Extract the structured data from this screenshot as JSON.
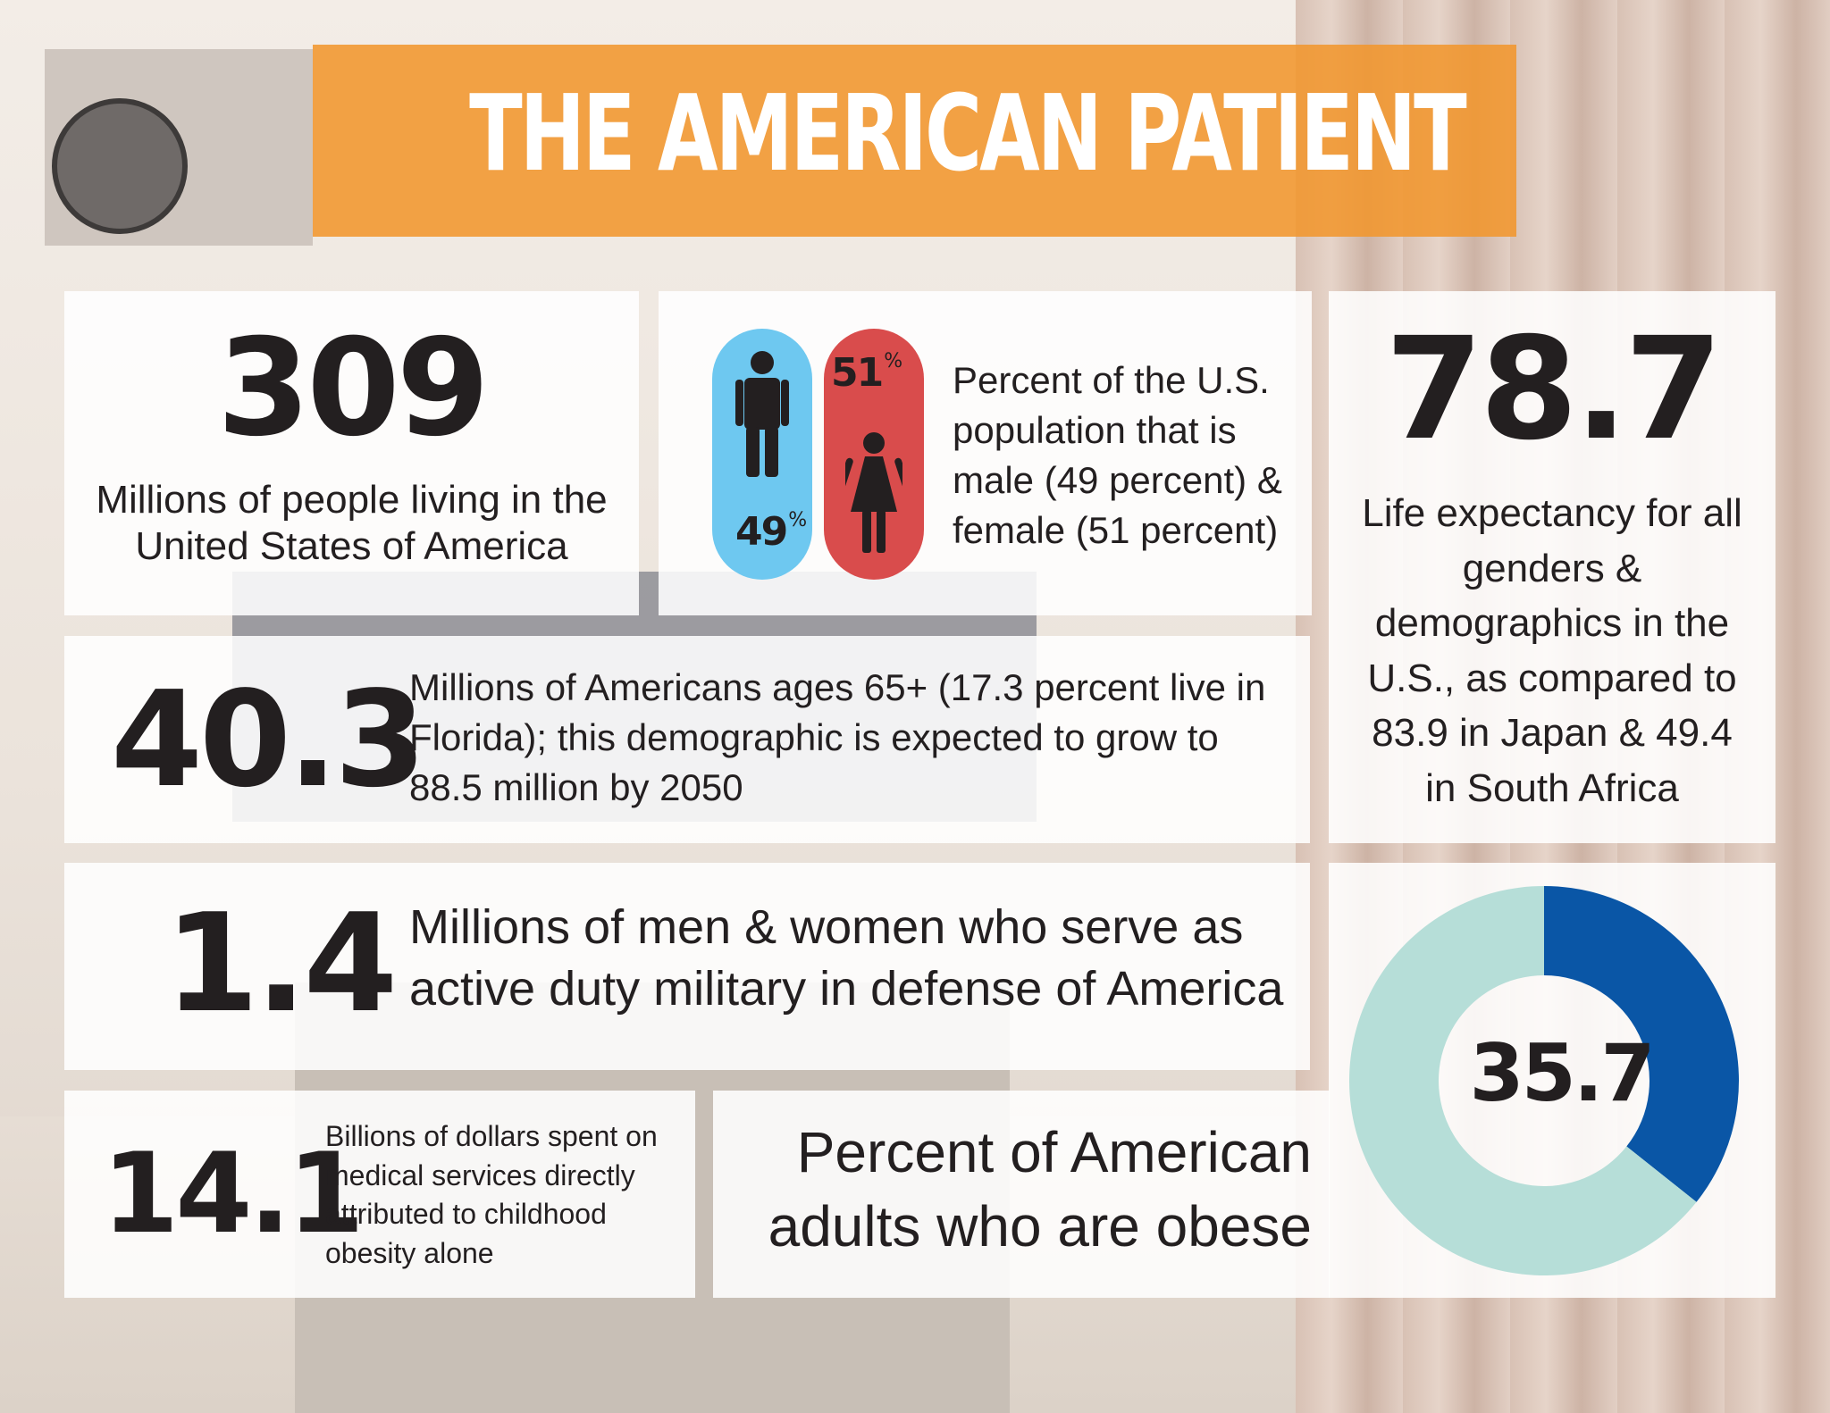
{
  "title": "THE AMERICAN PATIENT",
  "population": {
    "value": "309",
    "label": "Millions of people living in the United States of America"
  },
  "gender": {
    "male_pct": "49",
    "female_pct": "51",
    "pct_symbol": "%",
    "description": "Percent of the U.S. population that is male (49 percent) & female (51 percent)",
    "male_color": "#6ec8f0",
    "female_color": "#d94c4c",
    "icons": [
      "male-figure-icon",
      "female-figure-icon"
    ]
  },
  "life_expectancy": {
    "value": "78.7",
    "label": "Life expectancy for all genders & demographics in the U.S., as compared to 83.9 in Japan & 49.4 in South Africa"
  },
  "seniors": {
    "value": "40.3",
    "label": "Millions of Americans ages 65+ (17.3 percent live in Florida); this demographic is expected to grow to 88.5 million by 2050"
  },
  "military": {
    "value": "1.4",
    "label": "Millions of men & women who serve as active duty military in defense of America"
  },
  "obesity_cost": {
    "value": "14.1",
    "label": "Billions of dollars spent on medical services directly attributed to childhood obesity alone"
  },
  "obesity": {
    "value": "35.7",
    "label": "Percent of American adults who are obese"
  },
  "chart_data": {
    "type": "pie",
    "title": "",
    "center_label": "35.7",
    "values": [
      35.7,
      64.3
    ],
    "colors": [
      "#0a56a6",
      "#b6ded8"
    ]
  }
}
